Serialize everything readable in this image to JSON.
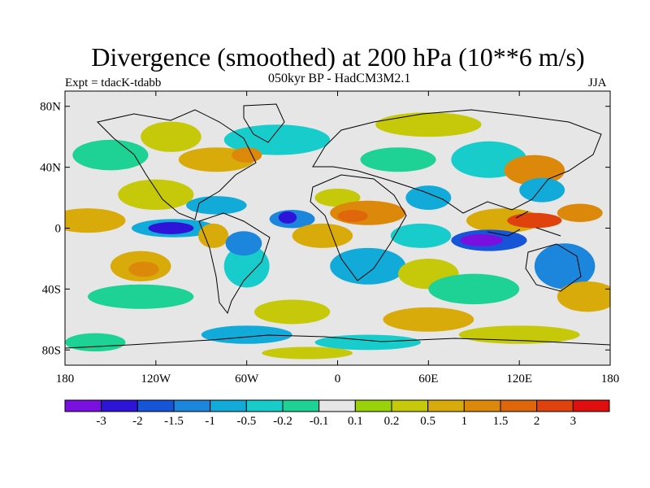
{
  "title": "Divergence (smoothed) at 200 hPa (10**6 m/s)",
  "subtitle": "050kyr BP - HadCM3M2.1",
  "experiment_label": "Expt = tdacK-tdabb",
  "season": "JJA",
  "axes": {
    "lat_ticks": [
      {
        "value": 80,
        "label": "80N"
      },
      {
        "value": 40,
        "label": "40N"
      },
      {
        "value": 0,
        "label": "0"
      },
      {
        "value": -40,
        "label": "40S"
      },
      {
        "value": -80,
        "label": "80S"
      }
    ],
    "lon_ticks": [
      {
        "value": -180,
        "label": "180"
      },
      {
        "value": -120,
        "label": "120W"
      },
      {
        "value": -60,
        "label": "60W"
      },
      {
        "value": 0,
        "label": "0"
      },
      {
        "value": 60,
        "label": "60E"
      },
      {
        "value": 120,
        "label": "120E"
      },
      {
        "value": 180,
        "label": "180"
      }
    ],
    "lat_range": [
      -90,
      90
    ],
    "lon_range": [
      -180,
      180
    ]
  },
  "colorbar": {
    "labels": [
      "-3",
      "-2",
      "-1.5",
      "-1",
      "-0.5",
      "-0.2",
      "-0.1",
      "0.1",
      "0.2",
      "0.5",
      "1",
      "1.5",
      "2",
      "3"
    ],
    "colors": [
      "#7a10e0",
      "#2e14d8",
      "#1654d8",
      "#1c86dc",
      "#12aad8",
      "#18cccc",
      "#1ed296",
      "#e6e6e6",
      "#9ad20a",
      "#c6c80a",
      "#d8aa0a",
      "#dc880a",
      "#e0660c",
      "#e0420e",
      "#e00e0e"
    ]
  },
  "field_blobs": [
    {
      "lon": -165,
      "lat": 5,
      "rx": 25,
      "ry": 8,
      "color": "#d8aa0a"
    },
    {
      "lon": -120,
      "lat": 22,
      "rx": 25,
      "ry": 10,
      "color": "#c6c80a"
    },
    {
      "lon": -108,
      "lat": 0,
      "rx": 28,
      "ry": 6,
      "color": "#12aad8"
    },
    {
      "lon": -110,
      "lat": 0,
      "rx": 15,
      "ry": 4,
      "color": "#2e14d8"
    },
    {
      "lon": -130,
      "lat": -25,
      "rx": 20,
      "ry": 10,
      "color": "#d8aa0a"
    },
    {
      "lon": -128,
      "lat": -27,
      "rx": 10,
      "ry": 5,
      "color": "#dc880a"
    },
    {
      "lon": -130,
      "lat": -45,
      "rx": 35,
      "ry": 8,
      "color": "#1ed296"
    },
    {
      "lon": -82,
      "lat": -5,
      "rx": 10,
      "ry": 8,
      "color": "#d8aa0a"
    },
    {
      "lon": -80,
      "lat": 15,
      "rx": 20,
      "ry": 6,
      "color": "#12aad8"
    },
    {
      "lon": -60,
      "lat": -25,
      "rx": 15,
      "ry": 14,
      "color": "#18cccc"
    },
    {
      "lon": -62,
      "lat": -10,
      "rx": 12,
      "ry": 8,
      "color": "#1c86dc"
    },
    {
      "lon": -30,
      "lat": 6,
      "rx": 15,
      "ry": 6,
      "color": "#1c86dc"
    },
    {
      "lon": -33,
      "lat": 7,
      "rx": 6,
      "ry": 4,
      "color": "#2e14d8"
    },
    {
      "lon": -40,
      "lat": 58,
      "rx": 35,
      "ry": 10,
      "color": "#18cccc"
    },
    {
      "lon": -80,
      "lat": 45,
      "rx": 25,
      "ry": 8,
      "color": "#d8aa0a"
    },
    {
      "lon": -60,
      "lat": 48,
      "rx": 10,
      "ry": 5,
      "color": "#dc880a"
    },
    {
      "lon": -110,
      "lat": 60,
      "rx": 20,
      "ry": 10,
      "color": "#c6c80a"
    },
    {
      "lon": -150,
      "lat": 48,
      "rx": 25,
      "ry": 10,
      "color": "#1ed296"
    },
    {
      "lon": 0,
      "lat": 20,
      "rx": 15,
      "ry": 6,
      "color": "#c6c80a"
    },
    {
      "lon": 20,
      "lat": 10,
      "rx": 25,
      "ry": 8,
      "color": "#dc880a"
    },
    {
      "lon": 10,
      "lat": 8,
      "rx": 10,
      "ry": 4,
      "color": "#e0660c"
    },
    {
      "lon": -10,
      "lat": -5,
      "rx": 20,
      "ry": 8,
      "color": "#d8aa0a"
    },
    {
      "lon": 20,
      "lat": -25,
      "rx": 25,
      "ry": 12,
      "color": "#12aad8"
    },
    {
      "lon": 55,
      "lat": -5,
      "rx": 20,
      "ry": 8,
      "color": "#18cccc"
    },
    {
      "lon": 60,
      "lat": -30,
      "rx": 20,
      "ry": 10,
      "color": "#c6c80a"
    },
    {
      "lon": 60,
      "lat": 20,
      "rx": 15,
      "ry": 8,
      "color": "#12aad8"
    },
    {
      "lon": 40,
      "lat": 45,
      "rx": 25,
      "ry": 8,
      "color": "#1ed296"
    },
    {
      "lon": 60,
      "lat": 68,
      "rx": 35,
      "ry": 8,
      "color": "#c6c80a"
    },
    {
      "lon": 100,
      "lat": 45,
      "rx": 25,
      "ry": 12,
      "color": "#18cccc"
    },
    {
      "lon": 130,
      "lat": 38,
      "rx": 20,
      "ry": 10,
      "color": "#dc880a"
    },
    {
      "lon": 135,
      "lat": 25,
      "rx": 15,
      "ry": 8,
      "color": "#12aad8"
    },
    {
      "lon": 110,
      "lat": 5,
      "rx": 25,
      "ry": 8,
      "color": "#d8aa0a"
    },
    {
      "lon": 130,
      "lat": 5,
      "rx": 18,
      "ry": 5,
      "color": "#e0420e"
    },
    {
      "lon": 100,
      "lat": -8,
      "rx": 25,
      "ry": 7,
      "color": "#1654d8"
    },
    {
      "lon": 95,
      "lat": -8,
      "rx": 14,
      "ry": 4,
      "color": "#7a10e0"
    },
    {
      "lon": 150,
      "lat": -25,
      "rx": 20,
      "ry": 15,
      "color": "#1c86dc"
    },
    {
      "lon": 160,
      "lat": 10,
      "rx": 15,
      "ry": 6,
      "color": "#dc880a"
    },
    {
      "lon": 165,
      "lat": -45,
      "rx": 20,
      "ry": 10,
      "color": "#d8aa0a"
    },
    {
      "lon": 90,
      "lat": -40,
      "rx": 30,
      "ry": 10,
      "color": "#1ed296"
    },
    {
      "lon": 60,
      "lat": -60,
      "rx": 30,
      "ry": 8,
      "color": "#d8aa0a"
    },
    {
      "lon": -30,
      "lat": -55,
      "rx": 25,
      "ry": 8,
      "color": "#c6c80a"
    },
    {
      "lon": -60,
      "lat": -70,
      "rx": 30,
      "ry": 6,
      "color": "#12aad8"
    },
    {
      "lon": 120,
      "lat": -70,
      "rx": 40,
      "ry": 6,
      "color": "#c6c80a"
    },
    {
      "lon": -160,
      "lat": -75,
      "rx": 20,
      "ry": 6,
      "color": "#1ed296"
    },
    {
      "lon": 20,
      "lat": -75,
      "rx": 35,
      "ry": 5,
      "color": "#18cccc"
    },
    {
      "lon": -20,
      "lat": -82,
      "rx": 30,
      "ry": 4,
      "color": "#c6c80a"
    }
  ]
}
